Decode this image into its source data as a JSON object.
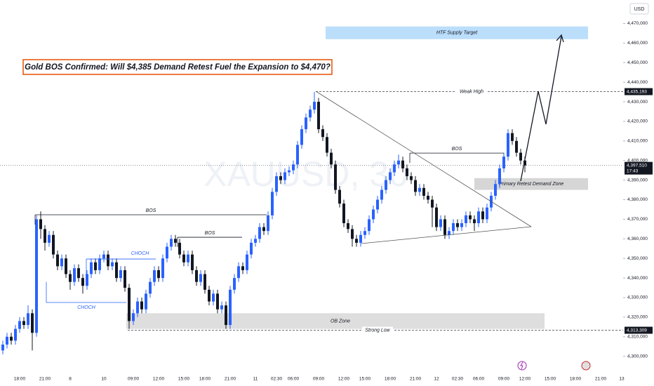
{
  "chart_data": {
    "type": "candlestick",
    "title": "Gold BOS Confirmed: Will $4,385 Demand Retest Fuel the Expansion to $4,470?",
    "watermark": "XAUUSD, 30",
    "currency": "USD",
    "up_color": "#2962ff",
    "down_color": "#131722",
    "ylim": [
      4292,
      4482
    ],
    "yticks": [
      {
        "value": 4300,
        "label": "4,300,000"
      },
      {
        "value": 4310,
        "label": "4,310,000"
      },
      {
        "value": 4320,
        "label": "4,320,000"
      },
      {
        "value": 4330,
        "label": "4,330,000"
      },
      {
        "value": 4340,
        "label": "4,340,000"
      },
      {
        "value": 4350,
        "label": "4,350,000"
      },
      {
        "value": 4360,
        "label": "4,360,000"
      },
      {
        "value": 4370,
        "label": "4,370,000"
      },
      {
        "value": 4380,
        "label": "4,380,000"
      },
      {
        "value": 4390,
        "label": "4,390,000"
      },
      {
        "value": 4400,
        "label": "4,400,000"
      },
      {
        "value": 4410,
        "label": "4,410,000"
      },
      {
        "value": 4420,
        "label": "4,420,000"
      },
      {
        "value": 4430,
        "label": "4,430,000"
      },
      {
        "value": 4440,
        "label": "4,440,000"
      },
      {
        "value": 4450,
        "label": "4,450,000"
      },
      {
        "value": 4460,
        "label": "4,460,000"
      },
      {
        "value": 4470,
        "label": "4,470,000"
      }
    ],
    "categories": [
      null,
      null,
      null,
      null,
      "18:00",
      null,
      null,
      null,
      null,
      null,
      "21:00",
      null,
      null,
      null,
      null,
      null,
      "8",
      null,
      null,
      null,
      null,
      null,
      null,
      null,
      "10",
      null,
      null,
      null,
      null,
      null,
      null,
      "09:00",
      null,
      null,
      null,
      null,
      null,
      "12:00",
      null,
      null,
      null,
      null,
      null,
      "15:00",
      null,
      null,
      null,
      null,
      "18:00",
      null,
      null,
      null,
      null,
      null,
      "21:00",
      null,
      null,
      null,
      null,
      null,
      "11",
      null,
      null,
      null,
      null,
      "02:30",
      null,
      null,
      null,
      "06:00",
      null,
      null,
      null,
      null,
      null,
      "09:00",
      null,
      null,
      null,
      null,
      null,
      "12:00",
      null,
      null,
      null,
      null,
      "15:00",
      null,
      null,
      null,
      null,
      null,
      "18:00",
      null,
      null,
      null,
      null,
      null,
      "21:00",
      null,
      null,
      null,
      null,
      "12",
      null,
      null,
      null,
      null,
      "02:30",
      null,
      null,
      null,
      null,
      "06:00",
      null,
      null,
      null,
      null,
      null,
      "09:00",
      null,
      null,
      null,
      null,
      "12:00",
      null,
      null,
      null,
      null,
      null,
      "15:00",
      null,
      null,
      null,
      null,
      null,
      "18:00",
      null,
      null,
      null,
      null,
      null,
      "21:00",
      null,
      null,
      null,
      null,
      "13"
    ],
    "open": [
      4303,
      4306,
      4310,
      4308,
      4314,
      4318,
      4316,
      4322,
      4312,
      4370,
      4365,
      4358,
      4362,
      4352,
      4346,
      4350,
      4342,
      4338,
      4345,
      4340,
      4336,
      4342,
      4348,
      4344,
      4350,
      4352,
      4346,
      4348,
      4340,
      4344,
      4335,
      4318,
      4322,
      4328,
      4324,
      4332,
      4338,
      4344,
      4340,
      4350,
      4356,
      4360,
      4358,
      4352,
      4348,
      4352,
      4344,
      4338,
      4342,
      4334,
      4328,
      4332,
      4324,
      4326,
      4316,
      4334,
      4340,
      4346,
      4344,
      4352,
      4358,
      4360,
      4366,
      4364,
      4372,
      4384,
      4392,
      4390,
      4394,
      4395,
      4398,
      4408,
      4416,
      4422,
      4426,
      4430,
      4416,
      4412,
      4404,
      4398,
      4385,
      4378,
      4368,
      4365,
      4360,
      4358,
      4362,
      4364,
      4370,
      4375,
      4380,
      4385,
      4390,
      4394,
      4398,
      4400,
      4396,
      4392,
      4390,
      4384,
      4386,
      4382,
      4380,
      4376,
      4366,
      4370,
      4362,
      4364,
      4368,
      4366,
      4368,
      4372,
      4370,
      4368,
      4374,
      4370,
      4376,
      4382,
      4388,
      4396,
      4402,
      4414,
      4410,
      4404,
      4400,
      null,
      null,
      null,
      null,
      null,
      null,
      null,
      null,
      null,
      null,
      null,
      null,
      null,
      null,
      null,
      null,
      null,
      null,
      null,
      null,
      null,
      null,
      null
    ],
    "high": [
      4308,
      4312,
      4312,
      4316,
      4320,
      4320,
      4326,
      4324,
      4372,
      4374,
      4367,
      4364,
      4364,
      4354,
      4352,
      4352,
      4344,
      4347,
      4347,
      4342,
      4344,
      4350,
      4350,
      4352,
      4354,
      4354,
      4350,
      4350,
      4346,
      4346,
      4337,
      4324,
      4330,
      4330,
      4334,
      4340,
      4346,
      4346,
      4352,
      4358,
      4362,
      4362,
      4360,
      4354,
      4354,
      4354,
      4346,
      4344,
      4344,
      4336,
      4334,
      4334,
      4328,
      4328,
      4336,
      4342,
      4348,
      4348,
      4354,
      4360,
      4362,
      4368,
      4368,
      4374,
      4386,
      4394,
      4394,
      4396,
      4397,
      4400,
      4410,
      4418,
      4424,
      4428,
      4435,
      4432,
      4418,
      4414,
      4406,
      4400,
      4387,
      4380,
      4370,
      4367,
      4362,
      4364,
      4366,
      4372,
      4377,
      4382,
      4387,
      4392,
      4396,
      4400,
      4403,
      4402,
      4398,
      4394,
      4392,
      4388,
      4388,
      4384,
      4382,
      4378,
      4372,
      4372,
      4366,
      4370,
      4370,
      4370,
      4374,
      4374,
      4372,
      4376,
      4376,
      4378,
      4384,
      4390,
      4398,
      4404,
      4416,
      4416,
      4412,
      4406,
      4402,
      null,
      null,
      null,
      null,
      null,
      null,
      null,
      null,
      null,
      null,
      null,
      null,
      null,
      null,
      null,
      null,
      null,
      null,
      null,
      null,
      null,
      null,
      null
    ],
    "low": [
      4301,
      4304,
      4306,
      4306,
      4312,
      4314,
      4314,
      4303,
      4310,
      4360,
      4354,
      4356,
      4350,
      4344,
      4344,
      4340,
      4334,
      4336,
      4338,
      4332,
      4334,
      4340,
      4342,
      4342,
      4348,
      4344,
      4344,
      4338,
      4338,
      4333,
      4314,
      4316,
      4320,
      4322,
      4322,
      4330,
      4336,
      4338,
      4338,
      4348,
      4354,
      4356,
      4350,
      4346,
      4346,
      4342,
      4336,
      4336,
      4332,
      4326,
      4326,
      4322,
      4322,
      4314,
      4314,
      4332,
      4338,
      4342,
      4342,
      4350,
      4356,
      4358,
      4362,
      4362,
      4370,
      4382,
      4388,
      4388,
      4392,
      4393,
      4396,
      4406,
      4414,
      4420,
      4424,
      4414,
      4410,
      4402,
      4396,
      4383,
      4376,
      4366,
      4363,
      4356,
      4356,
      4356,
      4360,
      4362,
      4368,
      4373,
      4378,
      4383,
      4388,
      4392,
      4396,
      4394,
      4390,
      4388,
      4382,
      4382,
      4380,
      4378,
      4366,
      4364,
      4364,
      4360,
      4360,
      4362,
      4364,
      4364,
      4366,
      4368,
      4364,
      4366,
      4368,
      4368,
      4374,
      4380,
      4386,
      4394,
      4400,
      4408,
      4402,
      4398,
      4394,
      null,
      null,
      null,
      null,
      null,
      null,
      null,
      null,
      null,
      null,
      null,
      null,
      null,
      null,
      null,
      null,
      null,
      null,
      null,
      null,
      null,
      null,
      null
    ],
    "close": [
      4306,
      4310,
      4308,
      4314,
      4318,
      4316,
      4322,
      4312,
      4370,
      4365,
      4358,
      4362,
      4352,
      4346,
      4350,
      4342,
      4338,
      4345,
      4340,
      4336,
      4342,
      4348,
      4344,
      4350,
      4352,
      4346,
      4348,
      4340,
      4344,
      4335,
      4318,
      4322,
      4328,
      4324,
      4332,
      4338,
      4344,
      4340,
      4350,
      4356,
      4360,
      4358,
      4352,
      4348,
      4352,
      4344,
      4338,
      4342,
      4334,
      4328,
      4332,
      4324,
      4326,
      4316,
      4334,
      4340,
      4346,
      4344,
      4352,
      4358,
      4360,
      4366,
      4364,
      4372,
      4384,
      4392,
      4390,
      4394,
      4395,
      4398,
      4408,
      4416,
      4422,
      4426,
      4430,
      4416,
      4412,
      4404,
      4398,
      4385,
      4378,
      4368,
      4365,
      4360,
      4358,
      4362,
      4364,
      4370,
      4375,
      4380,
      4385,
      4390,
      4394,
      4398,
      4400,
      4396,
      4392,
      4390,
      4384,
      4386,
      4382,
      4380,
      4376,
      4366,
      4370,
      4362,
      4364,
      4368,
      4366,
      4368,
      4372,
      4370,
      4368,
      4374,
      4370,
      4376,
      4382,
      4388,
      4396,
      4402,
      4414,
      4410,
      4404,
      4400,
      4397.51,
      null,
      null,
      null,
      null,
      null,
      null,
      null,
      null,
      null,
      null,
      null,
      null,
      null,
      null,
      null,
      null,
      null,
      null,
      null,
      null,
      null,
      null,
      null
    ],
    "current_price": {
      "value": 4397.51,
      "label": "4,397,510",
      "countdown": "17:43"
    },
    "zones": [
      {
        "label": "HTF Supply Target",
        "range": [
          4462,
          4468.5
        ],
        "color": "#bbdefb"
      },
      {
        "label": "Primary Retest Demand Zone",
        "range": [
          4385,
          4391
        ],
        "color": "#d6d6d6"
      },
      {
        "label": "OB Zone",
        "range": [
          4314,
          4322
        ],
        "color": "#dedede"
      }
    ],
    "levels": [
      {
        "label": "Weak High",
        "value": 4435.193,
        "price_label": "4,435,193"
      },
      {
        "label": "Strong Low",
        "value": 4313.309,
        "price_label": "4,313,309"
      }
    ],
    "bos": [
      {
        "label": "BOS",
        "value": 4372.3
      },
      {
        "label": "BOS",
        "value": 4360.8
      },
      {
        "label": "BOS",
        "value": 4403.8
      }
    ],
    "choch": [
      {
        "label": "CHOCH",
        "value": 4349.7
      },
      {
        "label": "CHOCH",
        "value": 4327.5
      }
    ]
  }
}
